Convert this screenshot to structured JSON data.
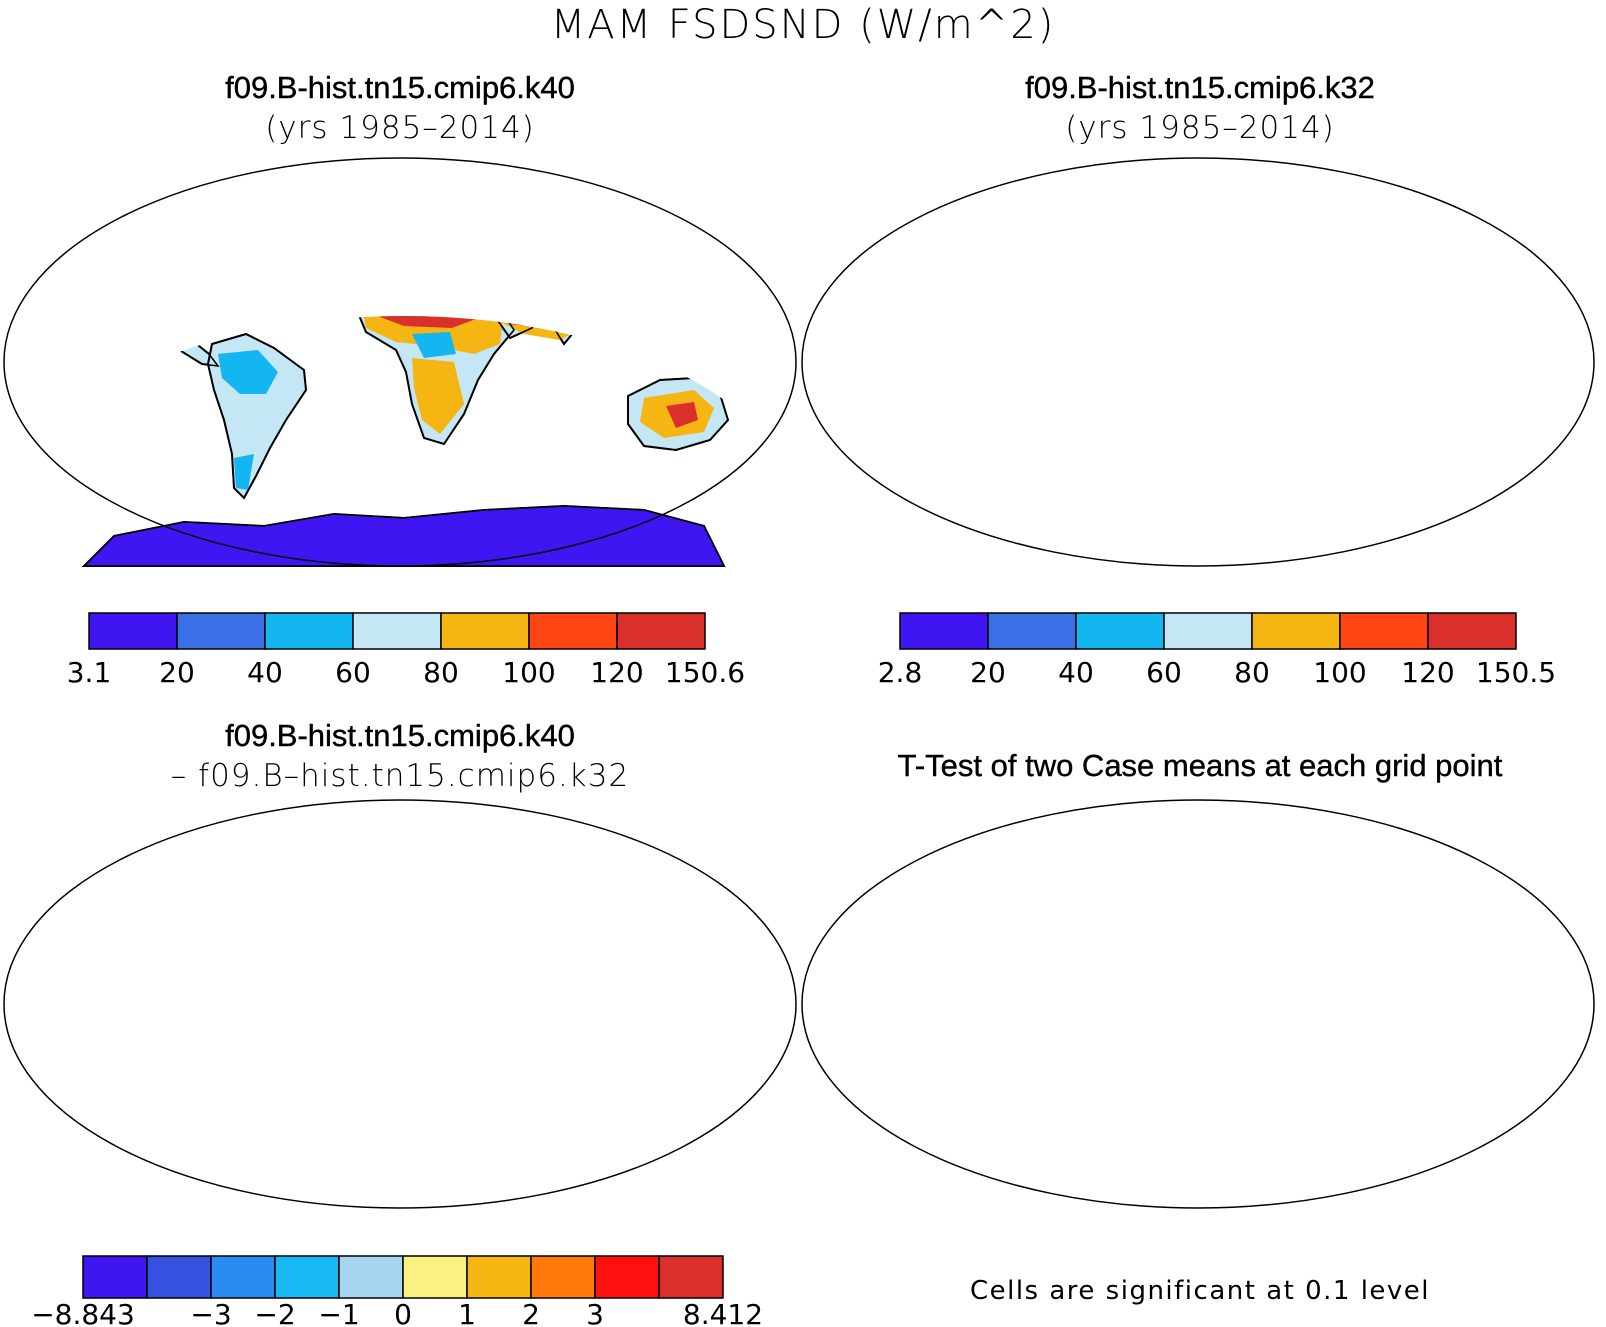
{
  "figure_title": "MAM FSDSND (W/m^2)",
  "panels": [
    {
      "id": "case1",
      "title": "f09.B-hist.tn15.cmip6.k40",
      "subtitle": "(yrs 1985–2014)"
    },
    {
      "id": "case2",
      "title": "f09.B-hist.tn15.cmip6.k32",
      "subtitle": "(yrs 1985–2014)"
    },
    {
      "id": "diff",
      "title": "f09.B-hist.tn15.cmip6.k40",
      "subtitle": "– f09.B–hist.tn15.cmip6.k32"
    },
    {
      "id": "ttest",
      "title": "T-Test of two Case means at each grid point",
      "subtitle": ""
    }
  ],
  "colorbars": {
    "case1": {
      "colors": [
        "#3f16f2",
        "#3a6fe6",
        "#14b6f2",
        "#c5e6f5",
        "#f5b512",
        "#ff4612",
        "#d9302c"
      ],
      "labels": [
        "3.1",
        "20",
        "40",
        "60",
        "80",
        "100",
        "120",
        "150.6"
      ]
    },
    "case2": {
      "colors": [
        "#3f16f2",
        "#3a6fe6",
        "#14b6f2",
        "#c5e6f5",
        "#f5b512",
        "#ff4612",
        "#d9302c"
      ],
      "labels": [
        "2.8",
        "20",
        "40",
        "60",
        "80",
        "100",
        "120",
        "150.5"
      ]
    },
    "diff": {
      "colors": [
        "#3f16f2",
        "#3451e0",
        "#2a8cf0",
        "#18b8f2",
        "#a6d6f2",
        "#fbf082",
        "#f5b512",
        "#ff7a0a",
        "#ff1010",
        "#d9302c"
      ],
      "labels": [
        "−8.843",
        "",
        "−3",
        "−2",
        "−1",
        "0",
        "1",
        "2",
        "3",
        "",
        "8.412"
      ]
    }
  },
  "significance_note": "Cells are significant at 0.1 level",
  "significance_color": "#ff1a1a"
}
